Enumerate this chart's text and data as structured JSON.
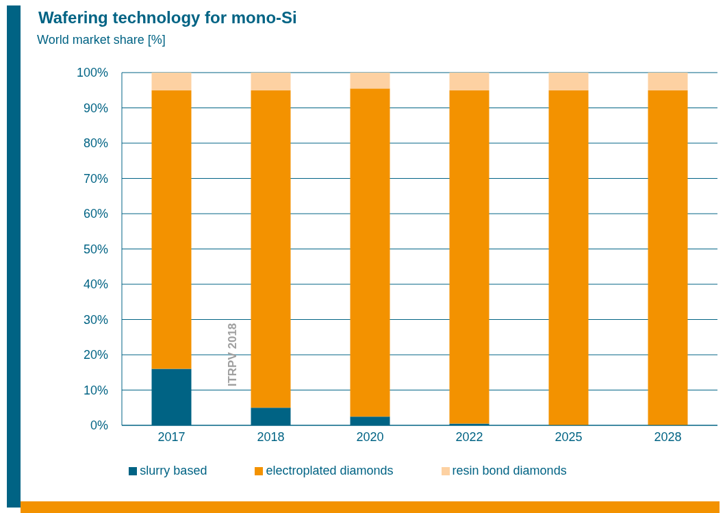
{
  "chart_data": {
    "type": "bar",
    "title": "Wafering technology for mono-Si",
    "subtitle": "World market share [%]",
    "categories": [
      "2017",
      "2018",
      "2020",
      "2022",
      "2025",
      "2028"
    ],
    "stacked": true,
    "series": [
      {
        "name": "slurry based",
        "color": "#006384",
        "values": [
          16,
          5,
          2.5,
          0.5,
          0,
          0
        ]
      },
      {
        "name": "electroplated diamonds",
        "color": "#f39200",
        "values": [
          79,
          90,
          93,
          94.5,
          95,
          95
        ]
      },
      {
        "name": "resin bond diamonds",
        "color": "#fdd1a2",
        "values": [
          5,
          5,
          4.5,
          5,
          5,
          5
        ]
      }
    ],
    "ylim": [
      0,
      100
    ],
    "yticks": [
      {
        "value": 0,
        "label": "0%"
      },
      {
        "value": 10,
        "label": "10%"
      },
      {
        "value": 20,
        "label": "20%"
      },
      {
        "value": 30,
        "label": "30%"
      },
      {
        "value": 40,
        "label": "40%"
      },
      {
        "value": 50,
        "label": "50%"
      },
      {
        "value": 60,
        "label": "60%"
      },
      {
        "value": 70,
        "label": "70%"
      },
      {
        "value": 80,
        "label": "80%"
      },
      {
        "value": 90,
        "label": "90%"
      },
      {
        "value": 100,
        "label": "100%"
      }
    ],
    "grid": "y",
    "legend": "bottom",
    "annotations": [
      "ITRPV 2018"
    ]
  }
}
